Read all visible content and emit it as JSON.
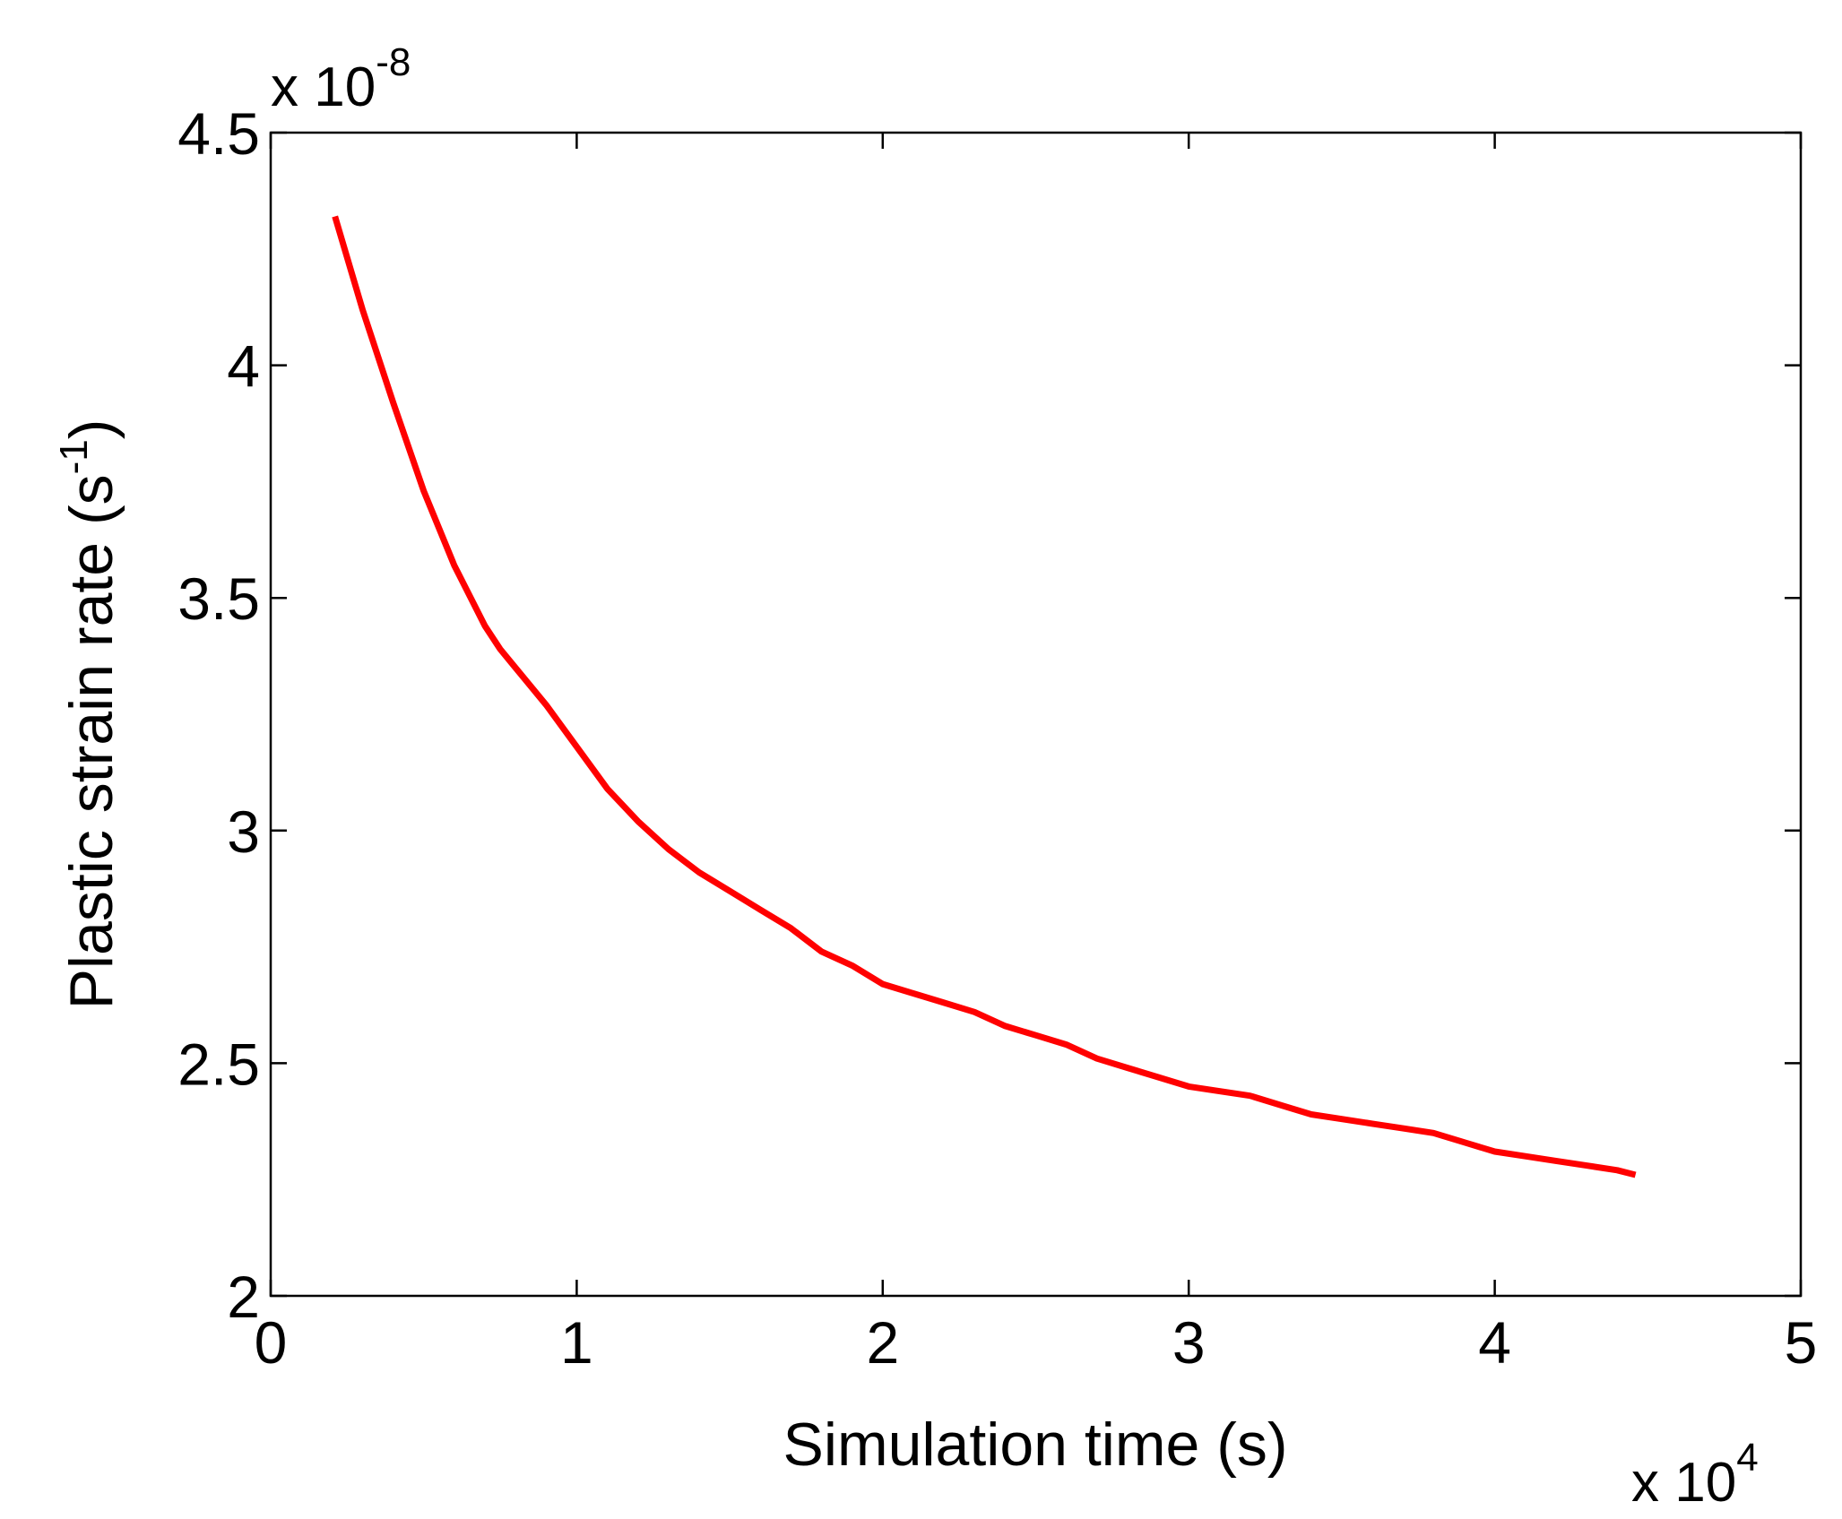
{
  "chart_data": {
    "type": "line",
    "title": "",
    "xlabel": "Simulation time (s)",
    "ylabel": "Plastic strain rate (s",
    "ylabel_superscript": "-1",
    "ylabel_suffix": ")",
    "xlim": [
      0,
      5
    ],
    "ylim": [
      2,
      4.5
    ],
    "x_multiplier": {
      "base": "x 10",
      "exponent": "4"
    },
    "y_multiplier": {
      "base": "x 10",
      "exponent": "-8"
    },
    "xticks": [
      0,
      1,
      2,
      3,
      4,
      5
    ],
    "xtick_labels": [
      "0",
      "1",
      "2",
      "3",
      "4",
      "5"
    ],
    "yticks": [
      2,
      2.5,
      3,
      3.5,
      4,
      4.5
    ],
    "ytick_labels": [
      "2",
      "2.5",
      "3",
      "3.5",
      "4",
      "4.5"
    ],
    "grid": false,
    "legend": "none",
    "series": [
      {
        "color": "#ff0000",
        "x": [
          0.21,
          0.3,
          0.4,
          0.5,
          0.6,
          0.7,
          0.75,
          0.8,
          0.9,
          1.0,
          1.1,
          1.2,
          1.3,
          1.4,
          1.5,
          1.6,
          1.7,
          1.8,
          1.9,
          2.0,
          2.1,
          2.2,
          2.3,
          2.4,
          2.5,
          2.6,
          2.7,
          2.8,
          2.9,
          3.0,
          3.1,
          3.2,
          3.3,
          3.4,
          3.5,
          3.6,
          3.7,
          3.8,
          3.9,
          4.0,
          4.1,
          4.2,
          4.3,
          4.4,
          4.46
        ],
        "y": [
          4.32,
          4.12,
          3.92,
          3.73,
          3.57,
          3.44,
          3.39,
          3.35,
          3.27,
          3.18,
          3.09,
          3.02,
          2.96,
          2.91,
          2.87,
          2.83,
          2.79,
          2.74,
          2.71,
          2.67,
          2.65,
          2.63,
          2.61,
          2.58,
          2.56,
          2.54,
          2.51,
          2.49,
          2.47,
          2.45,
          2.44,
          2.43,
          2.41,
          2.39,
          2.38,
          2.37,
          2.36,
          2.35,
          2.33,
          2.31,
          2.3,
          2.29,
          2.28,
          2.27,
          2.26
        ]
      }
    ]
  }
}
